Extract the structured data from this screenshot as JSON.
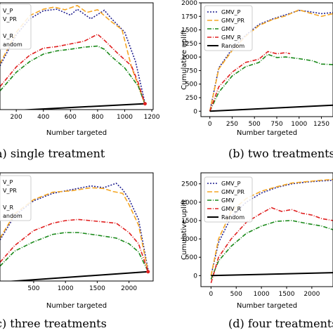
{
  "chart_data": [
    {
      "type": "line",
      "caption": "a) single treatment",
      "xlabel": "Number targeted",
      "ylabel": "",
      "xticks": [
        200,
        400,
        600,
        800,
        1000,
        1200
      ],
      "yticks": [],
      "xlim": [
        80,
        1210
      ],
      "ylim": [
        0,
        2000
      ],
      "legend_placement": "top-left",
      "legend_entries": [
        "V_P",
        "V_PR",
        "",
        "V_R",
        "andom"
      ],
      "series": [
        {
          "name": "GMV_P",
          "color": "#1f1f8f",
          "dash": "2,2",
          "points": [
            [
              80,
              820
            ],
            [
              200,
              1400
            ],
            [
              300,
              1700
            ],
            [
              400,
              1850
            ],
            [
              500,
              1880
            ],
            [
              600,
              1770
            ],
            [
              650,
              1880
            ],
            [
              750,
              1700
            ],
            [
              850,
              1860
            ],
            [
              900,
              1710
            ],
            [
              1000,
              1450
            ],
            [
              1080,
              900
            ],
            [
              1150,
              120
            ]
          ]
        },
        {
          "name": "GMV_PR",
          "color": "#f5a623",
          "dash": "7,3",
          "points": [
            [
              80,
              860
            ],
            [
              200,
              1450
            ],
            [
              300,
              1760
            ],
            [
              400,
              1880
            ],
            [
              480,
              1920
            ],
            [
              560,
              1870
            ],
            [
              650,
              1950
            ],
            [
              720,
              1820
            ],
            [
              800,
              1870
            ],
            [
              900,
              1650
            ],
            [
              980,
              1500
            ],
            [
              1050,
              800
            ],
            [
              1150,
              100
            ]
          ]
        },
        {
          "name": "GMV",
          "color": "#1b8a1b",
          "dash": "6,2,1,2",
          "points": [
            [
              80,
              350
            ],
            [
              200,
              700
            ],
            [
              300,
              900
            ],
            [
              400,
              1040
            ],
            [
              500,
              1100
            ],
            [
              600,
              1130
            ],
            [
              700,
              1170
            ],
            [
              800,
              1190
            ],
            [
              850,
              1130
            ],
            [
              900,
              1000
            ],
            [
              1000,
              780
            ],
            [
              1100,
              440
            ],
            [
              1150,
              100
            ]
          ]
        },
        {
          "name": "GMV_R",
          "color": "#e02020",
          "dash": "6,2,1,2",
          "points": [
            [
              80,
              430
            ],
            [
              200,
              800
            ],
            [
              300,
              1020
            ],
            [
              400,
              1150
            ],
            [
              500,
              1180
            ],
            [
              600,
              1230
            ],
            [
              700,
              1280
            ],
            [
              800,
              1410
            ],
            [
              850,
              1300
            ],
            [
              950,
              1050
            ],
            [
              1050,
              820
            ],
            [
              1100,
              500
            ],
            [
              1150,
              100
            ]
          ]
        },
        {
          "name": "Random",
          "color": "#000000",
          "dash": "",
          "points": [
            [
              80,
              -30
            ],
            [
              1150,
              110
            ]
          ]
        }
      ]
    },
    {
      "type": "line",
      "caption": "(b) two treatments",
      "xlabel": "Number targeted",
      "ylabel": "Cumulative uplift",
      "xticks": [
        0,
        250,
        500,
        750,
        1000,
        1250
      ],
      "yticks": [
        0,
        250,
        500,
        750,
        1000,
        1250,
        1500,
        1750,
        2000
      ],
      "xlim": [
        -100,
        1380
      ],
      "ylim": [
        -100,
        2000
      ],
      "legend_placement": "top-left",
      "legend_entries": [
        "GMV_P",
        "GMV_PR",
        "GMV",
        "GMV_R",
        "Random"
      ],
      "series": [
        {
          "name": "GMV_P",
          "color": "#1f1f8f",
          "dash": "2,2",
          "points": [
            [
              0,
              0
            ],
            [
              100,
              800
            ],
            [
              250,
              1150
            ],
            [
              400,
              1400
            ],
            [
              550,
              1600
            ],
            [
              700,
              1700
            ],
            [
              850,
              1780
            ],
            [
              1000,
              1860
            ],
            [
              1100,
              1840
            ],
            [
              1250,
              1800
            ],
            [
              1380,
              1820
            ]
          ]
        },
        {
          "name": "GMV_PR",
          "color": "#f5a623",
          "dash": "7,3",
          "points": [
            [
              0,
              0
            ],
            [
              100,
              780
            ],
            [
              250,
              1120
            ],
            [
              400,
              1380
            ],
            [
              550,
              1580
            ],
            [
              700,
              1690
            ],
            [
              850,
              1760
            ],
            [
              1000,
              1870
            ],
            [
              1100,
              1820
            ],
            [
              1250,
              1750
            ],
            [
              1380,
              1800
            ]
          ]
        },
        {
          "name": "GMV",
          "color": "#1b8a1b",
          "dash": "6,2,1,2",
          "points": [
            [
              0,
              0
            ],
            [
              100,
              350
            ],
            [
              250,
              650
            ],
            [
              400,
              820
            ],
            [
              550,
              900
            ],
            [
              650,
              1050
            ],
            [
              750,
              990
            ],
            [
              850,
              1000
            ],
            [
              1000,
              970
            ],
            [
              1150,
              930
            ],
            [
              1250,
              870
            ],
            [
              1380,
              860
            ]
          ]
        },
        {
          "name": "GMV_R",
          "color": "#e02020",
          "dash": "6,2,1,2",
          "points": [
            [
              0,
              0
            ],
            [
              100,
              450
            ],
            [
              250,
              720
            ],
            [
              400,
              900
            ],
            [
              550,
              960
            ],
            [
              650,
              1100
            ],
            [
              750,
              1060
            ],
            [
              850,
              1080
            ],
            [
              900,
              1060
            ]
          ]
        },
        {
          "name": "Random",
          "color": "#000000",
          "dash": "",
          "points": [
            [
              0,
              0
            ],
            [
              1380,
              110
            ]
          ]
        }
      ]
    },
    {
      "type": "line",
      "caption": "c) three treatments",
      "xlabel": "Number targeted",
      "ylabel": "",
      "xticks": [
        500,
        1000,
        1500,
        2000
      ],
      "yticks": [],
      "xlim": [
        -30,
        2380
      ],
      "ylim": [
        0,
        2900
      ],
      "legend_placement": "top-left",
      "legend_entries": [
        "V_P",
        "V_PR",
        "",
        "V_R",
        "andom"
      ],
      "series": [
        {
          "name": "GMV_P",
          "color": "#1f1f8f",
          "dash": "2,2",
          "points": [
            [
              -30,
              1100
            ],
            [
              200,
              1750
            ],
            [
              500,
              2150
            ],
            [
              800,
              2350
            ],
            [
              1100,
              2450
            ],
            [
              1400,
              2550
            ],
            [
              1600,
              2500
            ],
            [
              1800,
              2620
            ],
            [
              1900,
              2450
            ],
            [
              2000,
              2200
            ],
            [
              2150,
              1650
            ],
            [
              2300,
              300
            ]
          ]
        },
        {
          "name": "GMV_PR",
          "color": "#f5a623",
          "dash": "7,3",
          "points": [
            [
              -30,
              1150
            ],
            [
              200,
              1800
            ],
            [
              500,
              2180
            ],
            [
              800,
              2380
            ],
            [
              1100,
              2420
            ],
            [
              1400,
              2500
            ],
            [
              1600,
              2480
            ],
            [
              1750,
              2400
            ],
            [
              1900,
              2350
            ],
            [
              2000,
              2050
            ],
            [
              2150,
              1500
            ],
            [
              2300,
              250
            ]
          ]
        },
        {
          "name": "GMV",
          "color": "#1b8a1b",
          "dash": "6,2,1,2",
          "points": [
            [
              -30,
              400
            ],
            [
              200,
              800
            ],
            [
              500,
              1050
            ],
            [
              800,
              1250
            ],
            [
              1000,
              1300
            ],
            [
              1200,
              1300
            ],
            [
              1500,
              1230
            ],
            [
              1800,
              1150
            ],
            [
              2000,
              1000
            ],
            [
              2150,
              780
            ],
            [
              2300,
              250
            ]
          ]
        },
        {
          "name": "GMV_R",
          "color": "#e02020",
          "dash": "6,2,1,2",
          "points": [
            [
              -30,
              500
            ],
            [
              200,
              950
            ],
            [
              500,
              1350
            ],
            [
              800,
              1550
            ],
            [
              1000,
              1620
            ],
            [
              1200,
              1650
            ],
            [
              1500,
              1600
            ],
            [
              1800,
              1550
            ],
            [
              2000,
              1300
            ],
            [
              2150,
              1000
            ],
            [
              2300,
              250
            ]
          ]
        },
        {
          "name": "Random",
          "color": "#000000",
          "dash": "",
          "points": [
            [
              -30,
              -30
            ],
            [
              2300,
              250
            ]
          ]
        }
      ]
    },
    {
      "type": "line",
      "caption": "(d) four treatments",
      "xlabel": "Number targeted",
      "ylabel": "Cumulative uplift",
      "xticks": [
        0,
        500,
        1000,
        1500,
        2000
      ],
      "yticks": [
        0,
        500,
        1000,
        1500,
        2000,
        2500
      ],
      "xlim": [
        -200,
        2420
      ],
      "ylim": [
        -300,
        2800
      ],
      "legend_placement": "top-left",
      "legend_entries": [
        "GMV_P",
        "GMV_PR",
        "GMV",
        "GMV_R",
        "Random"
      ],
      "series": [
        {
          "name": "GMV_P",
          "color": "#1f1f8f",
          "dash": "2,2",
          "points": [
            [
              0,
              0
            ],
            [
              150,
              900
            ],
            [
              400,
              1600
            ],
            [
              700,
              2000
            ],
            [
              1000,
              2250
            ],
            [
              1300,
              2400
            ],
            [
              1600,
              2500
            ],
            [
              1900,
              2550
            ],
            [
              2200,
              2580
            ],
            [
              2420,
              2600
            ]
          ]
        },
        {
          "name": "GMV_PR",
          "color": "#f5a623",
          "dash": "7,3",
          "points": [
            [
              0,
              0
            ],
            [
              150,
              1000
            ],
            [
              400,
              1750
            ],
            [
              700,
              2100
            ],
            [
              1000,
              2300
            ],
            [
              1300,
              2420
            ],
            [
              1600,
              2520
            ],
            [
              1900,
              2560
            ],
            [
              2200,
              2600
            ],
            [
              2420,
              2620
            ]
          ]
        },
        {
          "name": "GMV",
          "color": "#1b8a1b",
          "dash": "6,2,1,2",
          "points": [
            [
              0,
              -100
            ],
            [
              150,
              400
            ],
            [
              400,
              800
            ],
            [
              700,
              1150
            ],
            [
              1000,
              1350
            ],
            [
              1300,
              1480
            ],
            [
              1600,
              1500
            ],
            [
              1900,
              1420
            ],
            [
              2200,
              1350
            ],
            [
              2420,
              1250
            ]
          ]
        },
        {
          "name": "GMV_R",
          "color": "#e02020",
          "dash": "6,2,1,2",
          "points": [
            [
              0,
              -200
            ],
            [
              150,
              500
            ],
            [
              400,
              1000
            ],
            [
              700,
              1450
            ],
            [
              1000,
              1700
            ],
            [
              1200,
              1850
            ],
            [
              1400,
              1750
            ],
            [
              1600,
              1800
            ],
            [
              1800,
              1700
            ],
            [
              2000,
              1650
            ],
            [
              2200,
              1550
            ],
            [
              2420,
              1500
            ]
          ]
        },
        {
          "name": "Random",
          "color": "#000000",
          "dash": "",
          "points": [
            [
              0,
              0
            ],
            [
              2420,
              80
            ]
          ]
        }
      ]
    }
  ]
}
